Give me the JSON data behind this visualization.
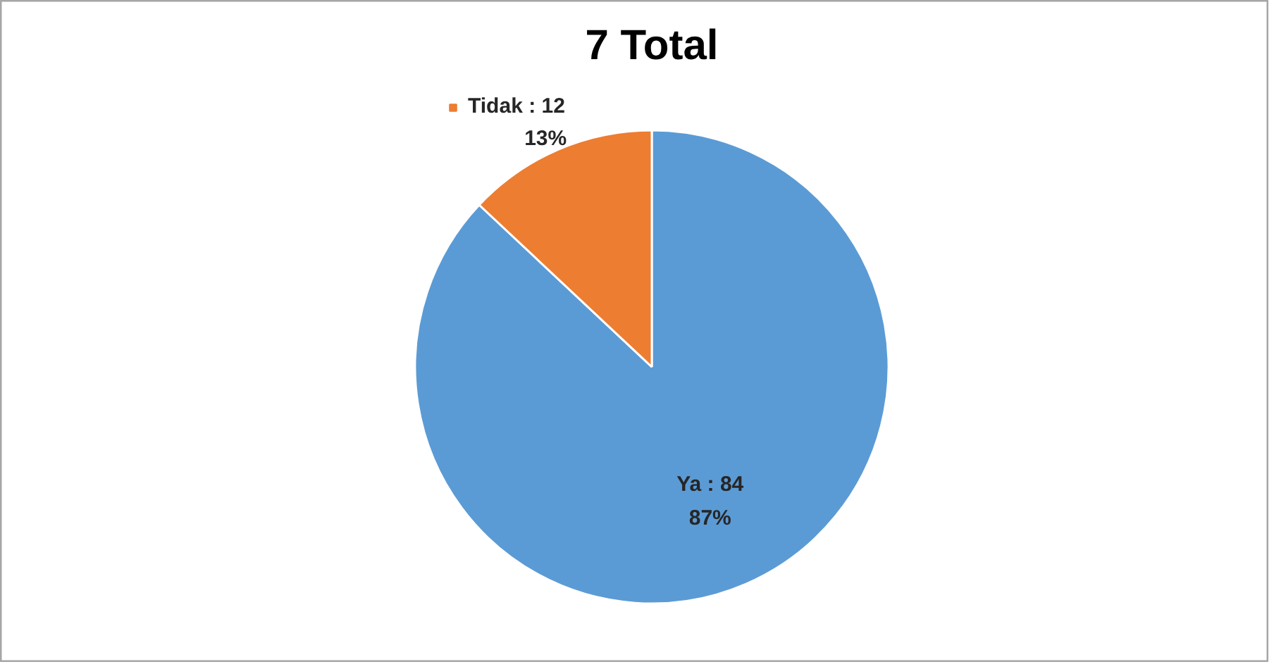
{
  "chart_data": {
    "type": "pie",
    "title": "7 Total",
    "categories": [
      "Ya : 84",
      "Tidak : 12"
    ],
    "values": [
      87,
      13
    ],
    "colors": [
      "#5b9bd5",
      "#ed7d31"
    ],
    "value_labels": [
      "87%",
      "13%"
    ],
    "legend": "top"
  }
}
